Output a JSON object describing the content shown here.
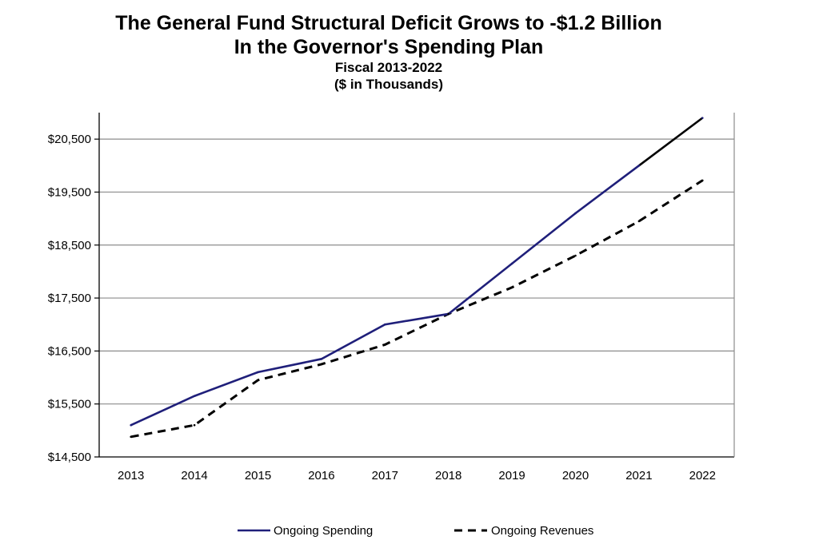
{
  "title_line1": "The General Fund Structural Deficit Grows to -$1.2 Billion",
  "title_line2": "In the Governor's Spending Plan",
  "subtitle_line1": "Fiscal 2013-2022",
  "subtitle_line2": "($ in Thousands)",
  "colors": {
    "spending": "#1f1f7a",
    "spending_end": "#000000",
    "revenues": "#000000",
    "grid": "#8c8c8c",
    "axis": "#000000"
  },
  "chart_data": {
    "type": "line",
    "title": "The General Fund Structural Deficit Grows to -$1.2 Billion In the Governor's Spending Plan",
    "subtitle": "Fiscal 2013-2022 ($ in Thousands)",
    "xlabel": "",
    "ylabel": "",
    "categories": [
      "2013",
      "2014",
      "2015",
      "2016",
      "2017",
      "2018",
      "2019",
      "2020",
      "2021",
      "2022"
    ],
    "ylim": [
      14500,
      21000
    ],
    "yticks": [
      14500,
      15500,
      16500,
      17500,
      18500,
      19500,
      20500
    ],
    "ytick_labels": [
      "$14,500",
      "$15,500",
      "$16,500",
      "$17,500",
      "$18,500",
      "$19,500",
      "$20,500"
    ],
    "grid": true,
    "legend_position": "bottom",
    "series": [
      {
        "name": "Ongoing Spending",
        "style": "solid",
        "values": [
          15100,
          15650,
          16100,
          16350,
          17000,
          17200,
          18150,
          19100,
          20000,
          20900
        ]
      },
      {
        "name": "Ongoing Revenues",
        "style": "dashed",
        "values": [
          14880,
          15100,
          15950,
          16250,
          16620,
          17200,
          17700,
          18300,
          18950,
          19720
        ]
      }
    ]
  }
}
